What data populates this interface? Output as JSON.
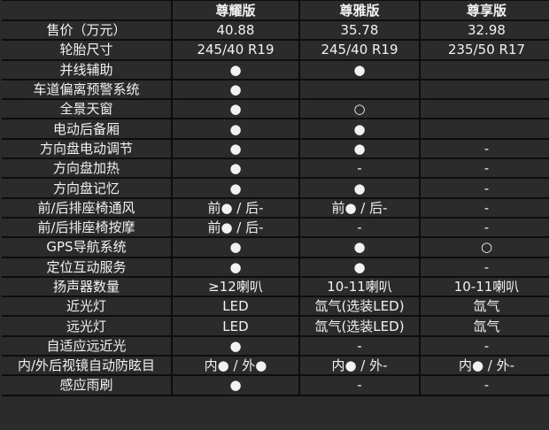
{
  "header": [
    "",
    "尊耀版",
    "尊雅版",
    "尊享版"
  ],
  "rows": [
    {
      "label": "售价（万元）",
      "values": [
        "40.88",
        "35.78",
        "32.98"
      ]
    },
    {
      "label": "轮胎尺寸",
      "values": [
        "245/40 R19",
        "245/40 R19",
        "235/50 R17"
      ]
    },
    {
      "label": "并线辅助",
      "values": [
        "●",
        "●",
        ""
      ]
    },
    {
      "label": "车道偏离预警系统",
      "values": [
        "●",
        "",
        ""
      ]
    },
    {
      "label": "全景天窗",
      "values": [
        "●",
        "○",
        ""
      ]
    },
    {
      "label": "电动后备厢",
      "values": [
        "●",
        "●",
        ""
      ]
    },
    {
      "label": "方向盘电动调节",
      "values": [
        "●",
        "●",
        "-"
      ]
    },
    {
      "label": "方向盘加热",
      "values": [
        "●",
        "-",
        "-"
      ]
    },
    {
      "label": "方向盘记忆",
      "values": [
        "●",
        "●",
        "-"
      ]
    },
    {
      "label": "前/后排座椅通风",
      "values": [
        "前● / 后-",
        "前● / 后-",
        "-"
      ]
    },
    {
      "label": "前/后排座椅按摩",
      "values": [
        "前● / 后-",
        "-",
        "-"
      ]
    },
    {
      "label": "GPS导航系统",
      "values": [
        "●",
        "●",
        "○"
      ]
    },
    {
      "label": "定位互动服务",
      "values": [
        "●",
        "●",
        "-"
      ]
    },
    {
      "label": "扬声器数量",
      "values": [
        "≥12喇叭",
        "10-11喇叭",
        "10-11喇叭"
      ]
    },
    {
      "label": "近光灯",
      "values": [
        "LED",
        "氙气(选装LED)",
        "氙气"
      ]
    },
    {
      "label": "远光灯",
      "values": [
        "LED",
        "氙气(选装LED)",
        "氙气"
      ]
    },
    {
      "label": "自适应远近光",
      "values": [
        "●",
        "-",
        "-"
      ]
    },
    {
      "label": "内/外后视镜自动防眩目",
      "values": [
        "内● / 外●",
        "内● / 外-",
        "内● / 外-"
      ]
    },
    {
      "label": "感应雨刷",
      "values": [
        "●",
        "-",
        "-"
      ]
    }
  ]
}
